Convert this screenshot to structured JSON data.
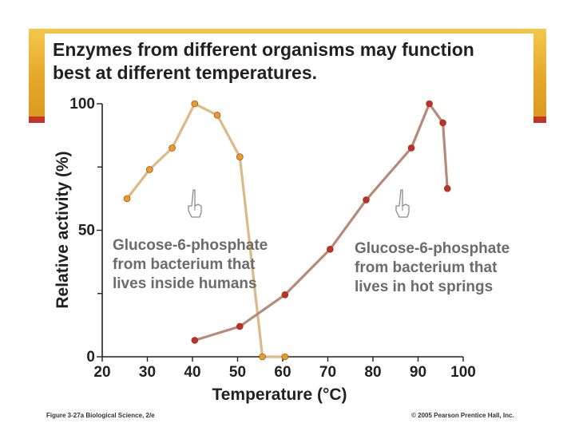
{
  "slide": {
    "title_line1": "Enzymes from different organisms may function",
    "title_line2": "best at different temperatures.",
    "footer_left": "Figure 3-27a  Biological Science, 2/e",
    "footer_right": "© 2005 Pearson Prentice Hall, Inc."
  },
  "colors": {
    "band": "#e6a72a",
    "accent_red": "#c0342a",
    "human_line": "#ddb98a",
    "human_point": "#e89a2a",
    "hot_line": "#b58a7a",
    "hot_point": "#c0302a"
  },
  "chart_data": {
    "type": "line",
    "xlabel": "Temperature (°C)",
    "ylabel": "Relative activity (%)",
    "xlim": [
      20,
      100
    ],
    "ylim": [
      0,
      100
    ],
    "x_ticks": [
      20,
      30,
      40,
      50,
      60,
      70,
      80,
      90,
      100
    ],
    "y_ticks_labeled": [
      0,
      50,
      100
    ],
    "y_ticks_minor": [
      25,
      75
    ],
    "grid": false,
    "series": [
      {
        "name": "Glucose-6-phosphate from bacterium that lives inside humans",
        "label_lines": [
          "Glucose-6-phosphate",
          "from bacterium that",
          "lives inside humans"
        ],
        "icon": "pointing-hand-icon",
        "points": [
          [
            25.5,
            62.5
          ],
          [
            30.5,
            74
          ],
          [
            35.5,
            82.5
          ],
          [
            40.5,
            100
          ],
          [
            45.5,
            95.5
          ],
          [
            50.5,
            79
          ],
          [
            55.5,
            0
          ],
          [
            60.5,
            0
          ]
        ]
      },
      {
        "name": "Glucose-6-phosphate from bacterium that lives in hot springs",
        "label_lines": [
          "Glucose-6-phosphate",
          "from bacterium that",
          "lives in hot springs"
        ],
        "icon": "pointing-hand-icon",
        "points": [
          [
            40.5,
            6.5
          ],
          [
            50.5,
            12
          ],
          [
            60.5,
            24.5
          ],
          [
            70.5,
            42.5
          ],
          [
            78.5,
            62
          ],
          [
            88.5,
            82.5
          ],
          [
            92.5,
            100
          ],
          [
            95.5,
            92.5
          ],
          [
            96.5,
            66.5
          ]
        ]
      }
    ]
  }
}
